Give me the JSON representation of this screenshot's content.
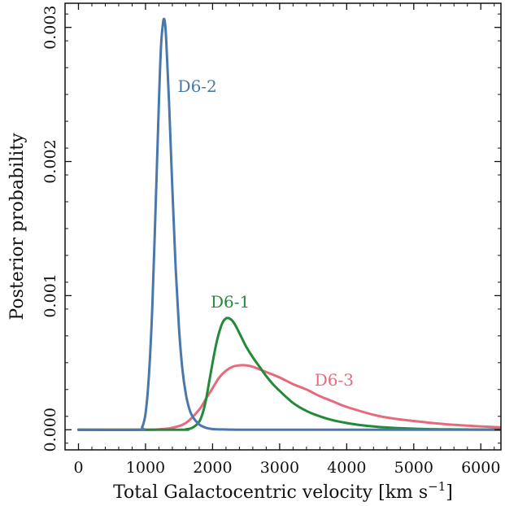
{
  "chart_data": {
    "type": "line",
    "xlabel": "Total Galactocentric velocity [km s",
    "xlabel_unit_sup": "−1",
    "xlabel_close": "]",
    "ylabel": "Posterior probability",
    "xlim": [
      -200,
      6300
    ],
    "ylim": [
      -0.00015,
      0.00318
    ],
    "x_ticks": [
      0,
      1000,
      2000,
      3000,
      4000,
      5000,
      6000
    ],
    "x_tick_labels": [
      "0",
      "1000",
      "2000",
      "3000",
      "4000",
      "5000",
      "6000"
    ],
    "y_ticks": [
      0.0,
      0.001,
      0.002,
      0.003
    ],
    "y_tick_labels": [
      "0.000",
      "0.001",
      "0.002",
      "0.003"
    ],
    "grid": false,
    "series": [
      {
        "name": "D6-2",
        "color": "#4a78aa",
        "label_at": [
          1480,
          0.00252
        ],
        "x": [
          0,
          900,
          950,
          1000,
          1050,
          1100,
          1150,
          1200,
          1230,
          1260,
          1280,
          1300,
          1320,
          1350,
          1400,
          1450,
          1500,
          1550,
          1600,
          1650,
          1700,
          1800,
          1900,
          2000,
          2200,
          2500,
          3000,
          4000,
          5000,
          6300
        ],
        "y": [
          0,
          0.0,
          2e-05,
          0.00012,
          0.0004,
          0.0009,
          0.00165,
          0.00245,
          0.00285,
          0.00303,
          0.00306,
          0.00298,
          0.00278,
          0.00245,
          0.0018,
          0.0012,
          0.00075,
          0.00045,
          0.00027,
          0.00016,
          0.0001,
          4e-05,
          1.5e-05,
          5e-06,
          2e-06,
          0.0,
          0.0,
          0.0,
          0.0,
          0.0
        ]
      },
      {
        "name": "D6-1",
        "color": "#238a3a",
        "label_at": [
          1970,
          0.00091
        ],
        "x": [
          0,
          1500,
          1600,
          1700,
          1800,
          1850,
          1900,
          1950,
          2000,
          2050,
          2100,
          2150,
          2200,
          2250,
          2300,
          2350,
          2400,
          2450,
          2500,
          2600,
          2700,
          2800,
          2900,
          3000,
          3200,
          3400,
          3600,
          3800,
          4000,
          4200,
          4500,
          5000,
          5500,
          6300
        ],
        "y": [
          0,
          0.0,
          3e-06,
          1.5e-05,
          6e-05,
          0.00012,
          0.00022,
          0.00036,
          0.0005,
          0.00063,
          0.00073,
          0.0008,
          0.00083,
          0.00083,
          0.00081,
          0.00077,
          0.00072,
          0.00067,
          0.00062,
          0.00054,
          0.00047,
          0.0004,
          0.00034,
          0.00029,
          0.0002,
          0.00014,
          0.0001,
          7e-05,
          5e-05,
          3.5e-05,
          2e-05,
          8e-06,
          3e-06,
          1e-06
        ]
      },
      {
        "name": "D6-3",
        "color": "#e56b7c",
        "label_at": [
          3520,
          0.00033
        ],
        "x": [
          0,
          1000,
          1200,
          1400,
          1600,
          1800,
          1900,
          2000,
          2100,
          2200,
          2300,
          2400,
          2500,
          2600,
          2800,
          3000,
          3200,
          3400,
          3600,
          3800,
          4000,
          4500,
          5000,
          5500,
          6000,
          6300
        ],
        "y": [
          0,
          0.0,
          3e-06,
          1.5e-05,
          5e-05,
          0.00015,
          0.00023,
          0.00031,
          0.00039,
          0.00044,
          0.00047,
          0.00048,
          0.00048,
          0.00047,
          0.00043,
          0.00039,
          0.00034,
          0.0003,
          0.00025,
          0.00021,
          0.00017,
          0.0001,
          6.5e-05,
          4e-05,
          2.5e-05,
          1.8e-05
        ]
      }
    ]
  }
}
